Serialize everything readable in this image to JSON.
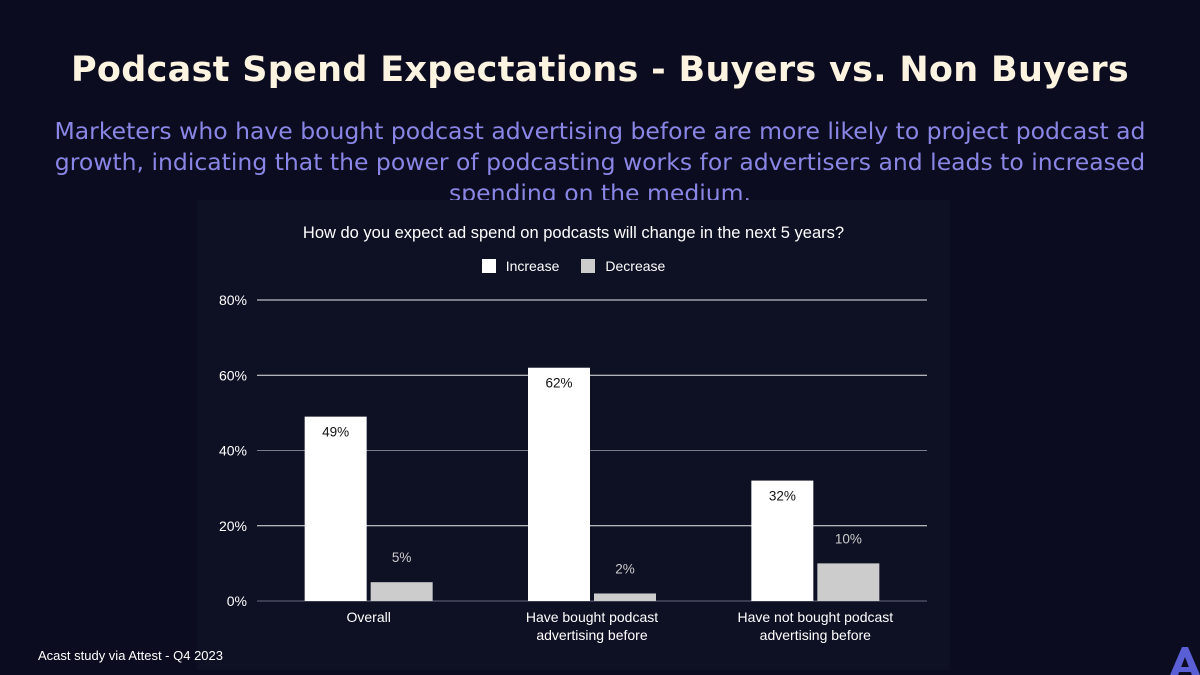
{
  "page": {
    "title": "Podcast Spend Expectations - Buyers vs. Non Buyers",
    "subtitle": "Marketers who have bought podcast advertising before are more likely to project podcast ad growth, indicating that the power of podcasting works for advertisers and leads to increased spending on the medium.",
    "footer": "Acast study via Attest - Q4 2023",
    "logo_icon": "acast-logo-icon"
  },
  "chart_data": {
    "type": "bar",
    "title": "How do you expect ad spend on podcasts will change in the next 5 years?",
    "categories": [
      [
        "Overall"
      ],
      [
        "Have bought podcast",
        "advertising before"
      ],
      [
        "Have not bought podcast",
        "advertising before"
      ]
    ],
    "series": [
      {
        "name": "Increase",
        "values": [
          49,
          62,
          32
        ],
        "labels": [
          "49%",
          "62%",
          "32%"
        ],
        "color": "#ffffff"
      },
      {
        "name": "Decrease",
        "values": [
          5,
          2,
          10
        ],
        "labels": [
          "5%",
          "2%",
          "10%"
        ],
        "color": "#cccccc"
      }
    ],
    "yticks": [
      "0%",
      "20%",
      "40%",
      "60%",
      "80%"
    ],
    "ylim": [
      0,
      80
    ],
    "xlabel": "",
    "ylabel": "",
    "grid": true,
    "legend": "top-center",
    "colors": {
      "background": "#0b0c1f",
      "panel": "#0e1024",
      "grid": "#ffffff",
      "title": "#fdf3e1",
      "subtitle": "#8a86e6"
    }
  }
}
